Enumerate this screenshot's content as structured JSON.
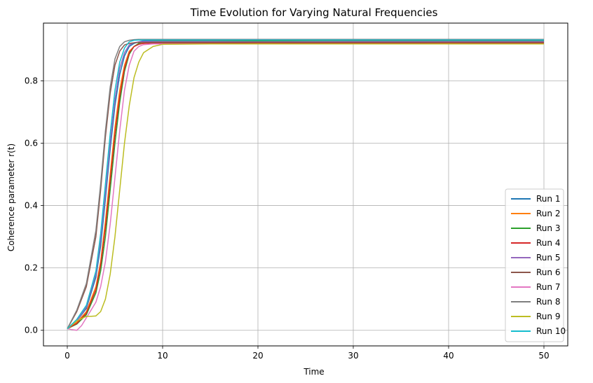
{
  "chart_data": {
    "type": "line",
    "title": "Time Evolution for Varying Natural Frequencies",
    "xlabel": "Time",
    "ylabel": "Coherence parameter r(t)",
    "xlim": [
      -2.5,
      52.5
    ],
    "ylim": [
      -0.05,
      0.985
    ],
    "xticks": [
      0,
      10,
      20,
      30,
      40,
      50
    ],
    "yticks": [
      0.0,
      0.2,
      0.4,
      0.6,
      0.8
    ],
    "xtick_labels": [
      "0",
      "10",
      "20",
      "30",
      "40",
      "50"
    ],
    "ytick_labels": [
      "0.0",
      "0.2",
      "0.4",
      "0.6",
      "0.8"
    ],
    "grid": true,
    "legend_position": "lower-right",
    "series": [
      {
        "name": "Run 1",
        "color": "#1f77b4",
        "x": [
          0,
          1,
          2,
          3,
          3.5,
          4,
          4.5,
          5,
          5.5,
          6,
          6.5,
          7,
          7.5,
          8,
          9,
          10,
          15,
          20,
          30,
          40,
          50
        ],
        "y": [
          0.005,
          0.03,
          0.07,
          0.17,
          0.27,
          0.42,
          0.58,
          0.72,
          0.82,
          0.88,
          0.91,
          0.92,
          0.925,
          0.928,
          0.929,
          0.93,
          0.93,
          0.93,
          0.931,
          0.93,
          0.93
        ]
      },
      {
        "name": "Run 2",
        "color": "#ff7f0e",
        "x": [
          0,
          1,
          2,
          3,
          3.5,
          4,
          4.5,
          5,
          5.5,
          6,
          6.5,
          7,
          7.5,
          8,
          9,
          10,
          15,
          20,
          30,
          40,
          50
        ],
        "y": [
          0.005,
          0.025,
          0.06,
          0.14,
          0.22,
          0.35,
          0.5,
          0.65,
          0.77,
          0.85,
          0.895,
          0.91,
          0.918,
          0.92,
          0.922,
          0.922,
          0.922,
          0.921,
          0.922,
          0.921,
          0.922
        ]
      },
      {
        "name": "Run 3",
        "color": "#2ca02c",
        "x": [
          0,
          1,
          2,
          3,
          3.5,
          4,
          4.5,
          5,
          5.5,
          6,
          6.5,
          7,
          7.5,
          8,
          9,
          10,
          15,
          20,
          30,
          40,
          50
        ],
        "y": [
          0.005,
          0.02,
          0.05,
          0.12,
          0.19,
          0.3,
          0.45,
          0.6,
          0.73,
          0.83,
          0.885,
          0.91,
          0.92,
          0.925,
          0.927,
          0.928,
          0.928,
          0.928,
          0.929,
          0.928,
          0.928
        ]
      },
      {
        "name": "Run 4",
        "color": "#d62728",
        "x": [
          0,
          1,
          2,
          3,
          3.5,
          4,
          4.5,
          5,
          5.5,
          6,
          6.5,
          7,
          7.5,
          8,
          9,
          10,
          15,
          20,
          30,
          40,
          50
        ],
        "y": [
          0.005,
          0.022,
          0.055,
          0.13,
          0.21,
          0.33,
          0.48,
          0.63,
          0.75,
          0.84,
          0.89,
          0.91,
          0.917,
          0.92,
          0.921,
          0.921,
          0.921,
          0.922,
          0.921,
          0.922,
          0.921
        ]
      },
      {
        "name": "Run 5",
        "color": "#9467bd",
        "x": [
          0,
          1,
          2,
          3,
          3.5,
          4,
          4.5,
          5,
          5.5,
          6,
          6.5,
          7,
          7.5,
          8,
          9,
          10,
          15,
          20,
          30,
          40,
          50
        ],
        "y": [
          0.005,
          0.03,
          0.075,
          0.18,
          0.29,
          0.44,
          0.6,
          0.74,
          0.84,
          0.89,
          0.915,
          0.922,
          0.925,
          0.926,
          0.926,
          0.926,
          0.926,
          0.925,
          0.926,
          0.926,
          0.926
        ]
      },
      {
        "name": "Run 6",
        "color": "#8c564b",
        "x": [
          0,
          1,
          2,
          3,
          3.5,
          4,
          4.5,
          5,
          5.5,
          6,
          6.5,
          7,
          7.5,
          8,
          9,
          10,
          15,
          20,
          30,
          40,
          50
        ],
        "y": [
          0.005,
          0.06,
          0.14,
          0.3,
          0.45,
          0.62,
          0.76,
          0.85,
          0.895,
          0.915,
          0.92,
          0.922,
          0.923,
          0.923,
          0.923,
          0.923,
          0.923,
          0.923,
          0.923,
          0.923,
          0.923
        ]
      },
      {
        "name": "Run 7",
        "color": "#e377c2",
        "x": [
          0,
          0.5,
          1,
          1.5,
          2,
          3,
          3.5,
          4,
          4.5,
          5,
          5.5,
          6,
          6.5,
          7,
          7.5,
          8,
          9,
          10,
          15,
          20,
          30,
          40,
          50
        ],
        "y": [
          0.005,
          0.002,
          0.0,
          0.015,
          0.04,
          0.09,
          0.14,
          0.22,
          0.34,
          0.49,
          0.64,
          0.77,
          0.85,
          0.895,
          0.91,
          0.916,
          0.918,
          0.918,
          0.918,
          0.918,
          0.918,
          0.918,
          0.918
        ]
      },
      {
        "name": "Run 8",
        "color": "#7f7f7f",
        "x": [
          0,
          1,
          2,
          3,
          3.5,
          4,
          4.5,
          5,
          5.5,
          6,
          6.5,
          7,
          7.5,
          8,
          9,
          10,
          15,
          20,
          30,
          40,
          50
        ],
        "y": [
          0.005,
          0.065,
          0.15,
          0.32,
          0.47,
          0.64,
          0.78,
          0.87,
          0.91,
          0.925,
          0.93,
          0.932,
          0.933,
          0.933,
          0.933,
          0.933,
          0.933,
          0.933,
          0.933,
          0.933,
          0.933
        ]
      },
      {
        "name": "Run 9",
        "color": "#bcbd22",
        "x": [
          0,
          1,
          2,
          2.5,
          3,
          3.5,
          4,
          4.5,
          5,
          5.5,
          6,
          6.5,
          7,
          7.5,
          8,
          9,
          10,
          15,
          20,
          30,
          40,
          50
        ],
        "y": [
          0.005,
          0.03,
          0.045,
          0.045,
          0.046,
          0.06,
          0.1,
          0.18,
          0.3,
          0.45,
          0.6,
          0.72,
          0.81,
          0.86,
          0.89,
          0.91,
          0.917,
          0.918,
          0.918,
          0.918,
          0.918,
          0.918
        ]
      },
      {
        "name": "Run 10",
        "color": "#17becf",
        "x": [
          0,
          1,
          2,
          3,
          3.5,
          4,
          4.5,
          5,
          5.5,
          6,
          6.5,
          7,
          7.5,
          8,
          9,
          10,
          15,
          20,
          30,
          40,
          50
        ],
        "y": [
          0.005,
          0.035,
          0.08,
          0.19,
          0.31,
          0.47,
          0.63,
          0.77,
          0.86,
          0.905,
          0.925,
          0.93,
          0.931,
          0.931,
          0.931,
          0.931,
          0.931,
          0.931,
          0.931,
          0.931,
          0.931
        ]
      }
    ]
  }
}
